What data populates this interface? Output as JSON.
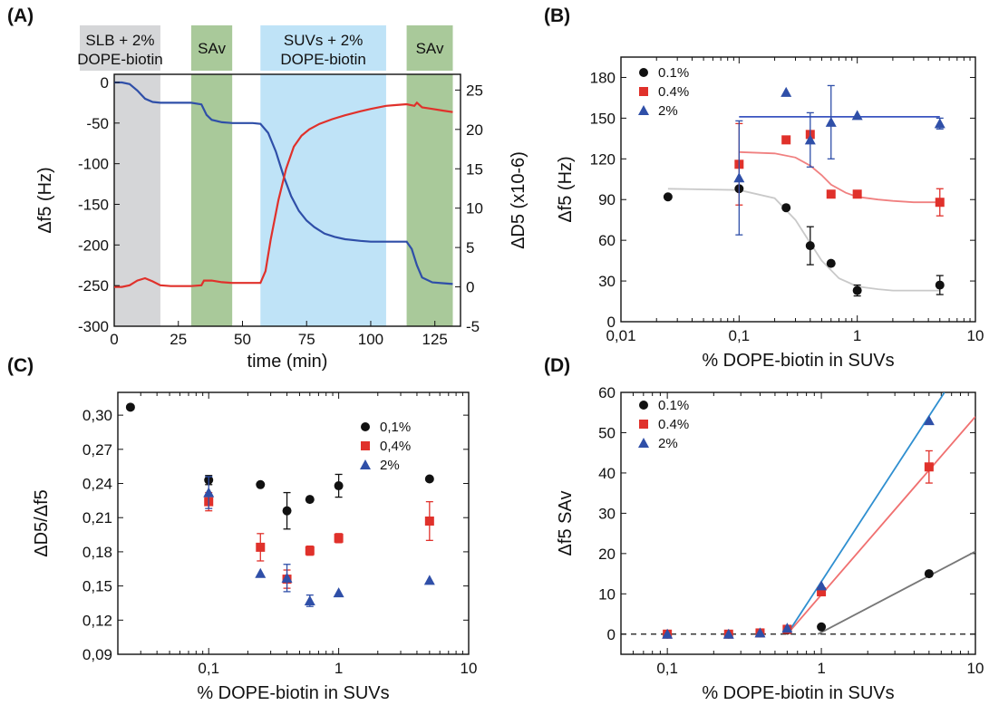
{
  "chart_data": [
    {
      "panel": "(A)",
      "type": "line",
      "xlabel": "time (min)",
      "ylabel": "Δf5 (Hz)",
      "ylabel_right": "ΔD5 (x10-6)",
      "xlim": [
        0,
        135
      ],
      "ylim": [
        -300,
        10
      ],
      "ylim_right": [
        -5,
        27
      ],
      "x_ticks": [
        "0",
        "25",
        "50",
        "75",
        "100",
        "125"
      ],
      "y_ticks": [
        "0",
        "-50",
        "-100",
        "-150",
        "-200",
        "-250",
        "-300"
      ],
      "y_ticks_right": [
        "25",
        "20",
        "15",
        "10",
        "5",
        "0",
        "-5"
      ],
      "regions": [
        {
          "label_lines": [
            "SLB + 2%",
            "DOPE-biotin"
          ],
          "x0": 0,
          "x1": 18,
          "color": "#d5d6d8"
        },
        {
          "label_lines": [
            "SAv"
          ],
          "x0": 30,
          "x1": 46,
          "color": "#a9c99a"
        },
        {
          "label_lines": [
            "SUVs + 2%",
            "DOPE-biotin"
          ],
          "x0": 57,
          "x1": 106,
          "color": "#bfe3f7"
        },
        {
          "label_lines": [
            "SAv"
          ],
          "x0": 114,
          "x1": 132,
          "color": "#a9c99a"
        }
      ],
      "series": [
        {
          "axis": "left",
          "color": "#2f4fa8",
          "x": [
            0,
            3,
            6,
            9,
            12,
            15,
            18,
            20,
            25,
            30,
            34,
            36,
            38,
            42,
            46,
            50,
            54,
            57,
            60,
            63,
            66,
            69,
            72,
            75,
            78,
            82,
            86,
            90,
            96,
            100,
            106,
            110,
            114,
            116,
            118,
            120,
            124,
            128,
            132
          ],
          "values": [
            0,
            0,
            -2,
            -10,
            -20,
            -24,
            -25,
            -25,
            -25,
            -25,
            -27,
            -40,
            -46,
            -49,
            -50,
            -50,
            -50,
            -51,
            -62,
            -85,
            -115,
            -140,
            -158,
            -170,
            -178,
            -186,
            -190,
            -193,
            -195,
            -196,
            -196,
            -196,
            -196,
            -205,
            -225,
            -240,
            -246,
            -247,
            -248
          ]
        },
        {
          "axis": "right",
          "color": "#e0312b",
          "x": [
            0,
            3,
            6,
            9,
            12,
            15,
            18,
            22,
            26,
            30,
            34,
            35,
            38,
            42,
            46,
            50,
            54,
            57,
            59,
            61,
            64,
            67,
            70,
            73,
            76,
            80,
            85,
            90,
            96,
            100,
            106,
            110,
            114,
            117,
            118,
            120,
            124,
            128,
            132
          ],
          "values": [
            0,
            0,
            0.2,
            0.8,
            1.1,
            0.7,
            0.2,
            0.1,
            0.1,
            0.1,
            0.2,
            0.8,
            0.8,
            0.6,
            0.5,
            0.5,
            0.5,
            0.5,
            2.0,
            6.0,
            11.0,
            15.0,
            17.8,
            19.2,
            20.0,
            20.7,
            21.3,
            21.8,
            22.3,
            22.6,
            23.0,
            23.1,
            23.2,
            23.0,
            23.4,
            22.8,
            22.6,
            22.4,
            22.2
          ]
        }
      ]
    },
    {
      "panel": "(B)",
      "type": "scatter",
      "xlabel": "% DOPE-biotin in SUVs",
      "ylabel": "Δf5 (Hz)",
      "xscale": "log",
      "xlim": [
        0.01,
        10
      ],
      "ylim": [
        0,
        195
      ],
      "x_tick_values": [
        0.01,
        0.1,
        1,
        10
      ],
      "x_ticks": [
        "0,01",
        "0,1",
        "1",
        "10"
      ],
      "y_tick_values": [
        0,
        30,
        60,
        90,
        120,
        150,
        180
      ],
      "y_ticks": [
        "0",
        "30",
        "60",
        "90",
        "120",
        "150",
        "180"
      ],
      "legend_position": "top-left",
      "series": [
        {
          "name": "0.1%",
          "marker": "circle",
          "color": "#111111",
          "fit_color": "#c9c9c9",
          "x": [
            0.025,
            0.1,
            0.25,
            0.4,
            0.6,
            1,
            5
          ],
          "values": [
            92,
            98,
            84,
            56,
            43,
            23,
            27
          ],
          "err": [
            0,
            0,
            0,
            14,
            0,
            4,
            7
          ],
          "fit": {
            "x": [
              0.025,
              0.1,
              0.2,
              0.3,
              0.4,
              0.5,
              0.7,
              1,
              1.5,
              2,
              3,
              5
            ],
            "values": [
              98,
              97,
              91,
              75,
              58,
              45,
              32,
              26,
              24,
              23,
              23,
              23
            ]
          }
        },
        {
          "name": "0.4%",
          "marker": "square",
          "color": "#e0312b",
          "fit_color": "#f08080",
          "x": [
            0.1,
            0.25,
            0.4,
            0.6,
            1,
            5
          ],
          "values": [
            116,
            134,
            138,
            94,
            94,
            88
          ],
          "err": [
            30,
            0,
            0,
            0,
            0,
            10
          ],
          "fit": {
            "x": [
              0.1,
              0.2,
              0.3,
              0.4,
              0.5,
              0.6,
              0.8,
              1,
              1.5,
              2,
              3,
              5
            ],
            "values": [
              125,
              124,
              121,
              115,
              108,
              101,
              95,
              92,
              90,
              89,
              88,
              88
            ]
          }
        },
        {
          "name": "2%",
          "marker": "triangle",
          "color": "#2f4fa8",
          "fit_color": "#3a55c0",
          "x": [
            0.1,
            0.25,
            0.4,
            0.6,
            1,
            5
          ],
          "values": [
            106,
            169,
            134,
            147,
            152,
            146
          ],
          "err": [
            42,
            0,
            20,
            27,
            0,
            4
          ],
          "fit": {
            "x": [
              0.1,
              5
            ],
            "values": [
              151,
              151
            ]
          }
        }
      ]
    },
    {
      "panel": "(C)",
      "type": "scatter",
      "xlabel": "% DOPE-biotin in SUVs",
      "ylabel": "ΔD5/Δf5",
      "xscale": "log",
      "xlim": [
        0.02,
        10
      ],
      "ylim": [
        0.09,
        0.32
      ],
      "x_tick_values": [
        0.1,
        1,
        10
      ],
      "x_ticks": [
        "0,1",
        "1",
        "10"
      ],
      "y_tick_values": [
        0.09,
        0.12,
        0.15,
        0.18,
        0.21,
        0.24,
        0.27,
        0.3
      ],
      "y_ticks": [
        "0,09",
        "0,12",
        "0,15",
        "0,18",
        "0,21",
        "0,24",
        "0,27",
        "0,30"
      ],
      "legend_position": "top-right",
      "series": [
        {
          "name": "0,1%",
          "marker": "circle",
          "color": "#111111",
          "x": [
            0.025,
            0.1,
            0.25,
            0.4,
            0.6,
            1,
            5
          ],
          "values": [
            0.307,
            0.243,
            0.239,
            0.216,
            0.226,
            0.238,
            0.244
          ],
          "err": [
            0,
            0.004,
            0,
            0.016,
            0,
            0.01,
            0
          ]
        },
        {
          "name": "0,4%",
          "marker": "square",
          "color": "#e0312b",
          "x": [
            0.1,
            0.25,
            0.4,
            0.6,
            1,
            5
          ],
          "values": [
            0.224,
            0.184,
            0.156,
            0.181,
            0.192,
            0.207
          ],
          "err": [
            0.008,
            0.012,
            0.008,
            0.004,
            0.004,
            0.017
          ]
        },
        {
          "name": "2%",
          "marker": "triangle",
          "color": "#2f4fa8",
          "x": [
            0.1,
            0.25,
            0.4,
            0.6,
            1,
            5
          ],
          "values": [
            0.232,
            0.161,
            0.157,
            0.137,
            0.144,
            0.155
          ],
          "err": [
            0.014,
            0,
            0.012,
            0.005,
            0,
            0
          ]
        }
      ]
    },
    {
      "panel": "(D)",
      "type": "scatter",
      "xlabel": "% DOPE-biotin in SUVs",
      "ylabel": "Δf5 SAv",
      "xscale": "log",
      "xlim": [
        0.05,
        10
      ],
      "ylim": [
        -5,
        60
      ],
      "x_tick_values": [
        0.1,
        1,
        10
      ],
      "x_ticks": [
        "0,1",
        "1",
        "10"
      ],
      "y_tick_values": [
        0,
        10,
        20,
        30,
        40,
        50,
        60
      ],
      "y_ticks": [
        "0",
        "10",
        "20",
        "30",
        "40",
        "50",
        "60"
      ],
      "legend_position": "top-left",
      "series": [
        {
          "name": "0.1%",
          "marker": "circle",
          "color": "#111111",
          "fit_color": "#777777",
          "x": [
            0.1,
            0.25,
            0.4,
            0.6,
            1,
            5
          ],
          "values": [
            0,
            0,
            0.3,
            1.0,
            1.8,
            15
          ],
          "err": [
            0,
            0,
            0,
            0,
            0,
            0
          ],
          "fit": {
            "x": [
              0.95,
              10
            ],
            "values": [
              0,
              20.5
            ]
          }
        },
        {
          "name": "0.4%",
          "marker": "square",
          "color": "#e0312b",
          "fit_color": "#f07070",
          "x": [
            0.1,
            0.25,
            0.4,
            0.6,
            1,
            5
          ],
          "values": [
            0,
            0,
            0.3,
            1.2,
            10.5,
            41.5
          ],
          "err": [
            0,
            0,
            0,
            0,
            0,
            4
          ],
          "fit": {
            "x": [
              0.6,
              10
            ],
            "values": [
              0,
              54
            ]
          }
        },
        {
          "name": "2%",
          "marker": "triangle",
          "color": "#2f4fa8",
          "fit_color": "#2f8fd0",
          "x": [
            0.1,
            0.25,
            0.4,
            0.6,
            1,
            5
          ],
          "values": [
            0,
            0,
            0.3,
            1.5,
            12,
            53
          ],
          "err": [
            0,
            0,
            0,
            0,
            0,
            0
          ],
          "fit": {
            "x": [
              0.6,
              6.3
            ],
            "values": [
              0,
              60
            ]
          }
        }
      ],
      "reference_line": {
        "y": 0,
        "style": "dashed"
      }
    }
  ]
}
